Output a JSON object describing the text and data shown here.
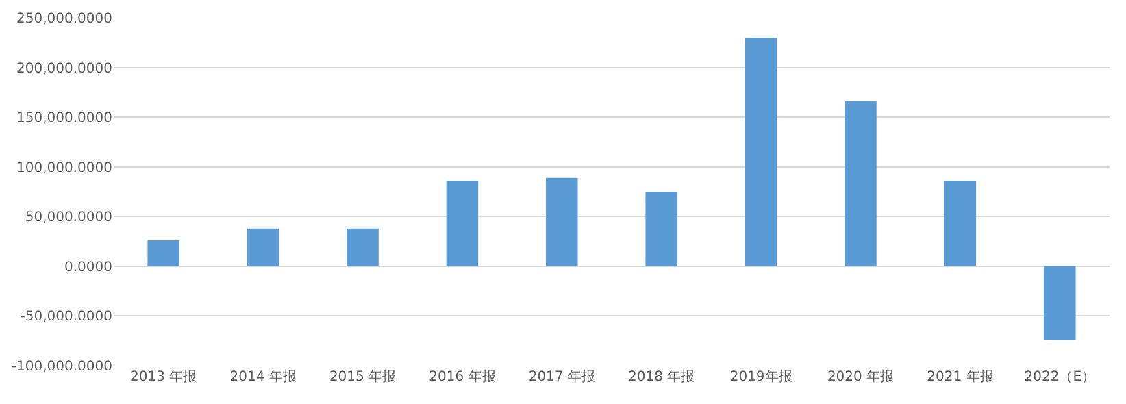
{
  "chart_data": {
    "type": "bar",
    "categories": [
      "2013 年报",
      "2014 年报",
      "2015 年报",
      "2016 年报",
      "2017 年报",
      "2018 年报",
      "2019年报",
      "2020 年报",
      "2021 年报",
      "2022（E）"
    ],
    "values": [
      26000,
      38000,
      38000,
      86000,
      89000,
      75000,
      230000,
      166000,
      86000,
      -74000
    ],
    "color": "#5b9bd5",
    "ylim": [
      -100000,
      250000
    ],
    "yticks": [
      {
        "value": -100000,
        "label": "-100,000.0000"
      },
      {
        "value": -50000,
        "label": "-50,000.0000"
      },
      {
        "value": 0,
        "label": "0.0000"
      },
      {
        "value": 50000,
        "label": "50,000.0000"
      },
      {
        "value": 100000,
        "label": "100,000.0000"
      },
      {
        "value": 150000,
        "label": "150,000.0000"
      },
      {
        "value": 200000,
        "label": "200,000.0000"
      },
      {
        "value": 250000,
        "label": "250,000.0000"
      }
    ],
    "grid": "y"
  }
}
